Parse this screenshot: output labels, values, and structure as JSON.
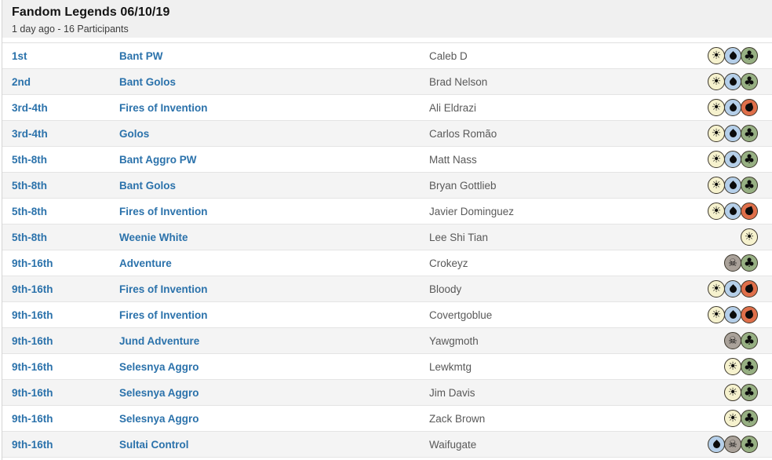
{
  "header": {
    "title": "Fandom Legends 06/10/19",
    "subtitle": "1 day ago - 16 Participants"
  },
  "colors": {
    "link": "#2b72ab",
    "player_text": "#595959",
    "header_bg": "#f0f0f0",
    "row_alt_bg": "#f4f4f4",
    "mana": {
      "W": "#f6f2ce",
      "U": "#b5cfe9",
      "B": "#aaa29a",
      "R": "#df6f4a",
      "G": "#97b083"
    }
  },
  "mana_icon_names": {
    "W": "white-mana-icon",
    "U": "blue-mana-icon",
    "B": "black-mana-icon",
    "R": "red-mana-icon",
    "G": "green-mana-icon"
  },
  "mana_glyphs": {
    "W": "☀",
    "B": "☠",
    "G": "♣"
  },
  "table": {
    "rows": [
      {
        "place": "1st",
        "deck": "Bant PW",
        "player": "Caleb D",
        "mana": [
          "W",
          "U",
          "G"
        ]
      },
      {
        "place": "2nd",
        "deck": "Bant Golos",
        "player": "Brad Nelson",
        "mana": [
          "W",
          "U",
          "G"
        ]
      },
      {
        "place": "3rd-4th",
        "deck": "Fires of Invention",
        "player": "Ali Eldrazi",
        "mana": [
          "W",
          "U",
          "R"
        ]
      },
      {
        "place": "3rd-4th",
        "deck": "Golos",
        "player": "Carlos Romão",
        "mana": [
          "W",
          "U",
          "G"
        ]
      },
      {
        "place": "5th-8th",
        "deck": "Bant Aggro PW",
        "player": "Matt Nass",
        "mana": [
          "W",
          "U",
          "G"
        ]
      },
      {
        "place": "5th-8th",
        "deck": "Bant Golos",
        "player": "Bryan Gottlieb",
        "mana": [
          "W",
          "U",
          "G"
        ]
      },
      {
        "place": "5th-8th",
        "deck": "Fires of Invention",
        "player": "Javier Dominguez",
        "mana": [
          "W",
          "U",
          "R"
        ]
      },
      {
        "place": "5th-8th",
        "deck": "Weenie White",
        "player": "Lee Shi Tian",
        "mana": [
          "W"
        ]
      },
      {
        "place": "9th-16th",
        "deck": "Adventure",
        "player": "Crokeyz",
        "mana": [
          "B",
          "G"
        ]
      },
      {
        "place": "9th-16th",
        "deck": "Fires of Invention",
        "player": "Bloody",
        "mana": [
          "W",
          "U",
          "R"
        ]
      },
      {
        "place": "9th-16th",
        "deck": "Fires of Invention",
        "player": "Covertgoblue",
        "mana": [
          "W",
          "U",
          "R"
        ]
      },
      {
        "place": "9th-16th",
        "deck": "Jund Adventure",
        "player": "Yawgmoth",
        "mana": [
          "B",
          "G"
        ]
      },
      {
        "place": "9th-16th",
        "deck": "Selesnya Aggro",
        "player": "Lewkmtg",
        "mana": [
          "W",
          "G"
        ]
      },
      {
        "place": "9th-16th",
        "deck": "Selesnya Aggro",
        "player": "Jim Davis",
        "mana": [
          "W",
          "G"
        ]
      },
      {
        "place": "9th-16th",
        "deck": "Selesnya Aggro",
        "player": "Zack Brown",
        "mana": [
          "W",
          "G"
        ]
      },
      {
        "place": "9th-16th",
        "deck": "Sultai Control",
        "player": "Waifugate",
        "mana": [
          "U",
          "B",
          "G"
        ]
      }
    ]
  }
}
